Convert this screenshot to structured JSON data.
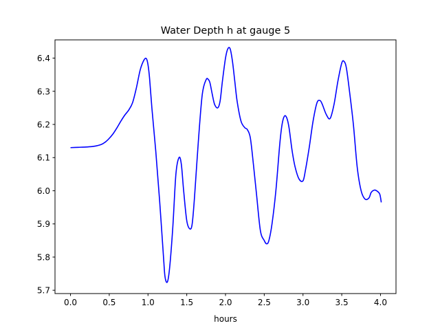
{
  "chart_data": {
    "type": "line",
    "title": "Water Depth h at gauge 5",
    "xlabel": "hours",
    "ylabel": "",
    "xlim": [
      -0.2,
      4.2
    ],
    "ylim": [
      5.69,
      6.455
    ],
    "xticks": [
      0.0,
      0.5,
      1.0,
      1.5,
      2.0,
      2.5,
      3.0,
      3.5,
      4.0
    ],
    "xtick_labels": [
      "0.0",
      "0.5",
      "1.0",
      "1.5",
      "2.0",
      "2.5",
      "3.0",
      "3.5",
      "4.0"
    ],
    "yticks": [
      5.7,
      5.8,
      5.9,
      6.0,
      6.1,
      6.2,
      6.3,
      6.4
    ],
    "ytick_labels": [
      "5.7",
      "5.8",
      "5.9",
      "6.0",
      "6.1",
      "6.2",
      "6.3",
      "6.4"
    ],
    "grid": false,
    "series": [
      {
        "name": "",
        "color": "#0000ff",
        "x": [
          0.0,
          0.1,
          0.2,
          0.3,
          0.4,
          0.45,
          0.5,
          0.55,
          0.6,
          0.65,
          0.7,
          0.75,
          0.8,
          0.85,
          0.9,
          0.95,
          0.98,
          1.0,
          1.02,
          1.05,
          1.1,
          1.15,
          1.2,
          1.22,
          1.25,
          1.28,
          1.32,
          1.36,
          1.4,
          1.43,
          1.46,
          1.5,
          1.54,
          1.57,
          1.6,
          1.65,
          1.7,
          1.75,
          1.78,
          1.8,
          1.83,
          1.86,
          1.9,
          1.93,
          1.96,
          2.0,
          2.03,
          2.06,
          2.09,
          2.12,
          2.15,
          2.2,
          2.25,
          2.28,
          2.32,
          2.36,
          2.4,
          2.45,
          2.5,
          2.53,
          2.56,
          2.6,
          2.65,
          2.7,
          2.73,
          2.76,
          2.79,
          2.82,
          2.86,
          2.9,
          2.95,
          3.0,
          3.03,
          3.08,
          3.13,
          3.18,
          3.22,
          3.25,
          3.3,
          3.35,
          3.4,
          3.45,
          3.5,
          3.53,
          3.56,
          3.6,
          3.65,
          3.7,
          3.75,
          3.8,
          3.85,
          3.88,
          3.92,
          3.95,
          3.99,
          4.01
        ],
        "y": [
          6.13,
          6.131,
          6.132,
          6.134,
          6.14,
          6.147,
          6.158,
          6.172,
          6.19,
          6.21,
          6.228,
          6.243,
          6.265,
          6.31,
          6.365,
          6.395,
          6.398,
          6.38,
          6.34,
          6.25,
          6.12,
          5.97,
          5.8,
          5.74,
          5.725,
          5.77,
          5.89,
          6.05,
          6.1,
          6.08,
          6.0,
          5.91,
          5.885,
          5.9,
          5.98,
          6.15,
          6.29,
          6.335,
          6.335,
          6.325,
          6.29,
          6.26,
          6.25,
          6.27,
          6.33,
          6.4,
          6.428,
          6.428,
          6.39,
          6.33,
          6.27,
          6.21,
          6.19,
          6.185,
          6.16,
          6.08,
          5.99,
          5.88,
          5.85,
          5.84,
          5.85,
          5.9,
          6.0,
          6.14,
          6.2,
          6.225,
          6.22,
          6.19,
          6.12,
          6.07,
          6.035,
          6.03,
          6.06,
          6.13,
          6.21,
          6.265,
          6.272,
          6.26,
          6.23,
          6.218,
          6.26,
          6.33,
          6.385,
          6.39,
          6.37,
          6.3,
          6.2,
          6.07,
          6.0,
          5.975,
          5.978,
          5.995,
          6.002,
          6.0,
          5.99,
          5.965
        ]
      }
    ]
  }
}
